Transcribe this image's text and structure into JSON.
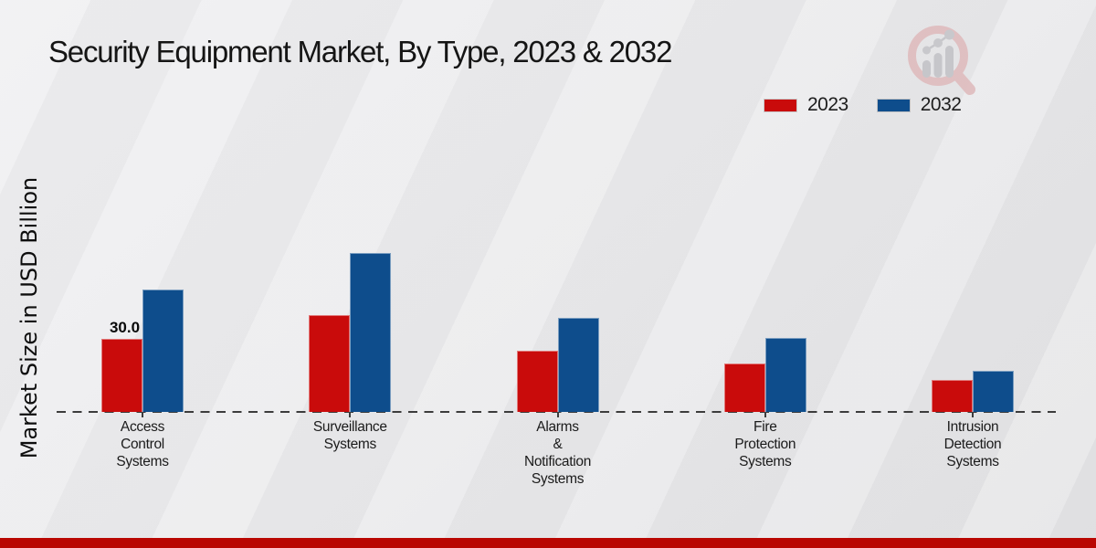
{
  "page": {
    "title": "Security Equipment Market, By Type, 2023 & 2032",
    "ylabel": "Market Size in USD Billion"
  },
  "legend": {
    "items": [
      {
        "label": "2023",
        "color": "#c90b0b"
      },
      {
        "label": "2032",
        "color": "#0e4d8c"
      }
    ]
  },
  "icons": {
    "logo": "magnifier-bar-chart-logo"
  },
  "colors": {
    "accent_red": "#c90b0b",
    "accent_blue": "#0e4d8c",
    "footer_stripe": "#b90702",
    "baseline": "#3c3c3c",
    "background": "#eaeaec"
  },
  "chart_data": {
    "type": "bar",
    "title": "Security Equipment Market, By Type, 2023 & 2032",
    "xlabel": "",
    "ylabel": "Market Size in USD Billion",
    "categories": [
      "Access Control Systems",
      "Surveillance Systems",
      "Alarms & Notification Systems",
      "Fire Protection Systems",
      "Intrusion Detection Systems"
    ],
    "category_lines": [
      "Access\nControl\nSystems",
      "Surveillance\nSystems",
      "Alarms\n&\nNotification\nSystems",
      "Fire\nProtection\nSystems",
      "Intrusion\nDetection\nSystems"
    ],
    "series": [
      {
        "name": "2023",
        "color": "#c90b0b",
        "values": [
          30.0,
          39.8,
          25.2,
          19.9,
          13.1
        ]
      },
      {
        "name": "2032",
        "color": "#0e4d8c",
        "values": [
          50.2,
          65.2,
          38.5,
          30.3,
          16.9
        ]
      }
    ],
    "data_labels": [
      {
        "series": 0,
        "category": 0,
        "text": "30.0"
      }
    ],
    "ylim": [
      0,
      70
    ],
    "grid": false,
    "baseline_style": "dashed",
    "y_axis_ticks_visible": false,
    "legend_position": "top-right"
  }
}
